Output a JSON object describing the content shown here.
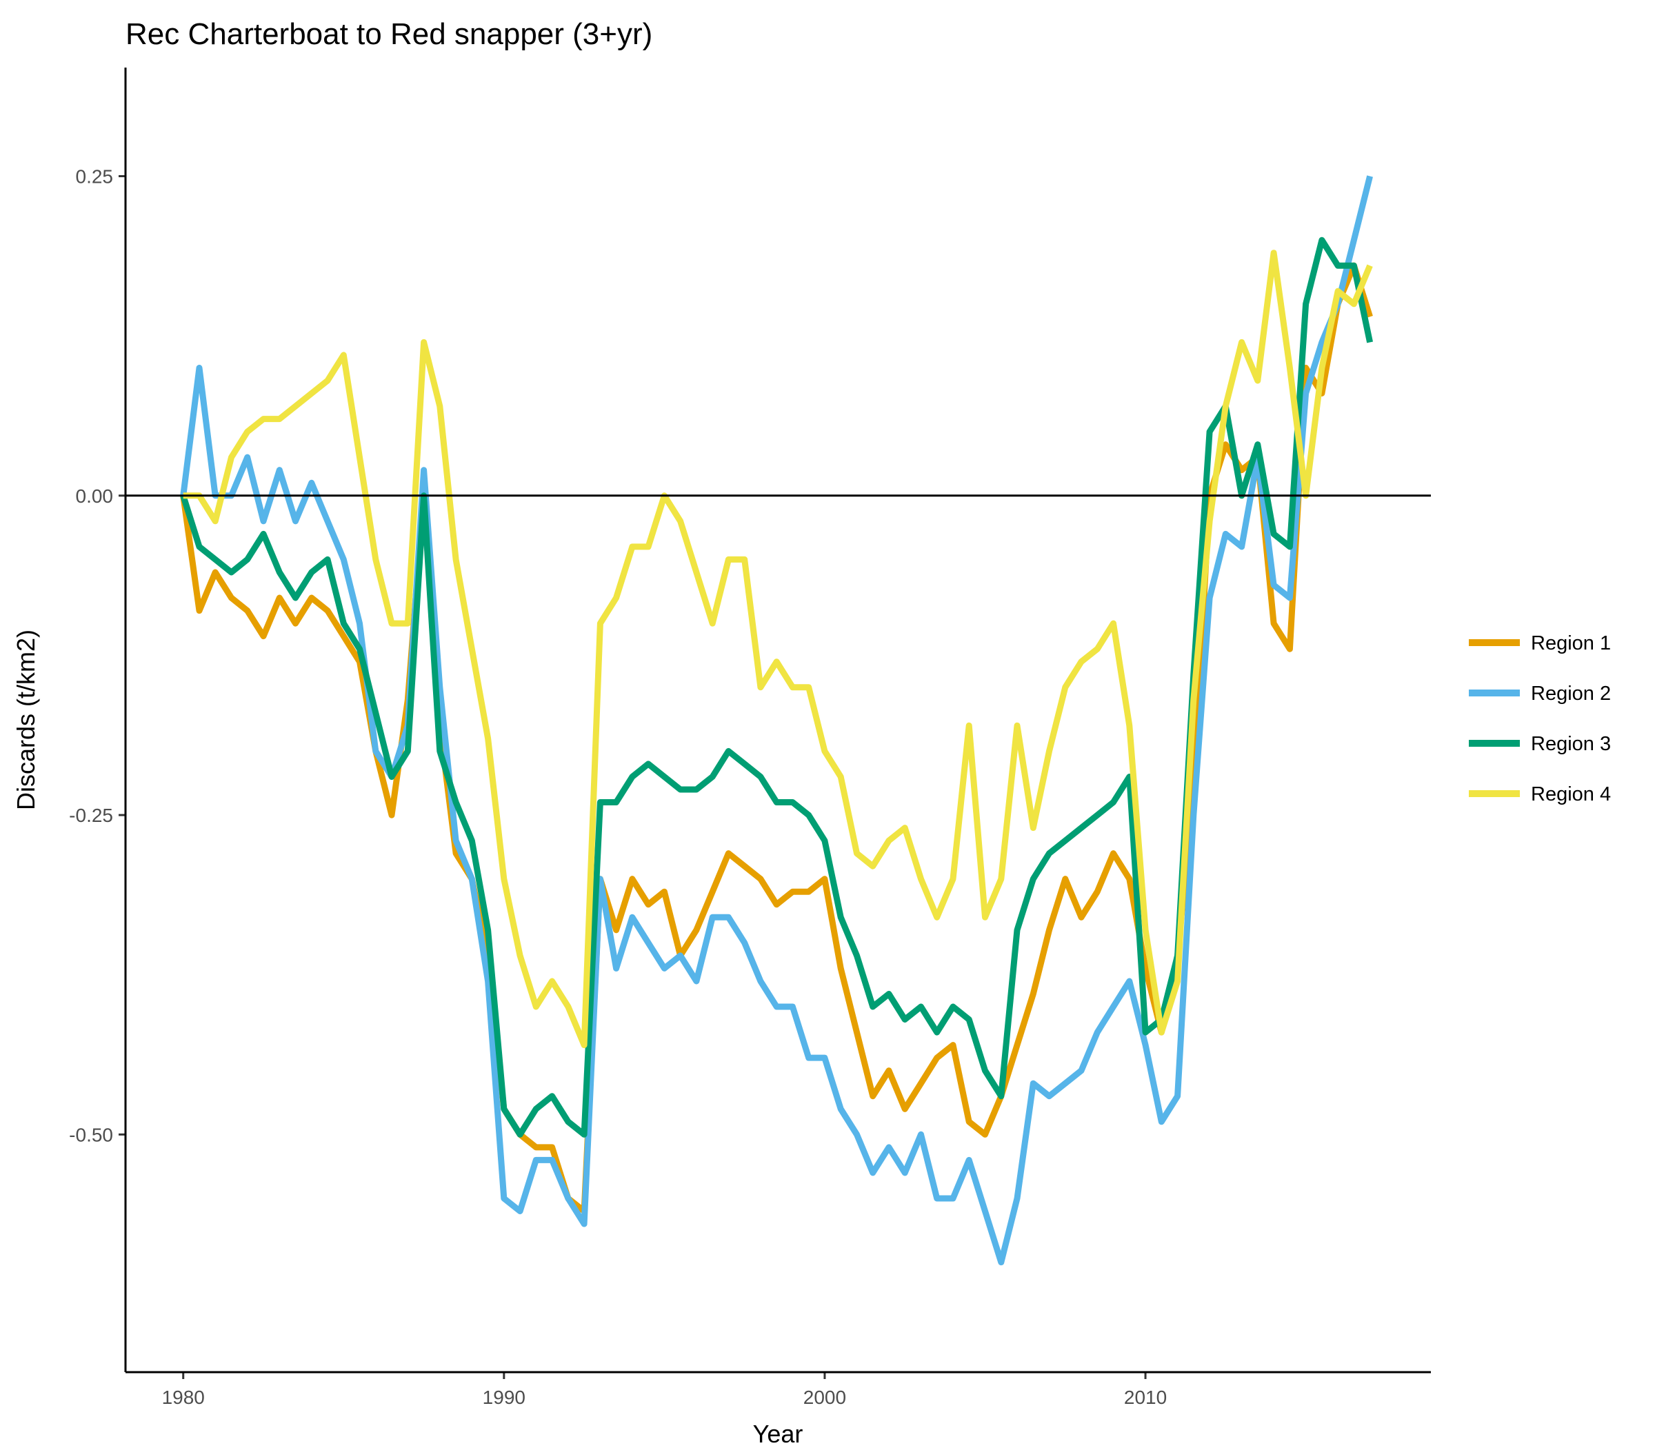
{
  "chart_data": {
    "type": "line",
    "title": "Rec Charterboat to Red snapper (3+yr)",
    "xlabel": "Year",
    "ylabel": "Discards (t/km2)",
    "xlim": [
      1978.2,
      2018.9
    ],
    "ylim": [
      -0.686,
      0.335
    ],
    "x_ticks": [
      1980,
      1990,
      2000,
      2010
    ],
    "x_tick_labels": [
      "1980",
      "1990",
      "2000",
      "2010"
    ],
    "y_ticks": [
      -0.5,
      -0.25,
      0,
      0.25
    ],
    "y_tick_labels": [
      "-0.50",
      "-0.25",
      "0.00",
      "0.25"
    ],
    "reference_line_y": 0,
    "grid": false,
    "legend_position": "right",
    "series": [
      {
        "name": "Region 1",
        "color": "#E69F00",
        "x": [
          1980,
          1980.5,
          1981,
          1981.5,
          1982,
          1982.5,
          1983,
          1983.5,
          1984,
          1984.5,
          1985,
          1985.5,
          1986,
          1986.5,
          1987,
          1987.5,
          1988,
          1988.5,
          1989,
          1989.5,
          1990,
          1990.5,
          1991,
          1991.5,
          1992,
          1992.5,
          1993,
          1993.5,
          1994,
          1994.5,
          1995,
          1995.5,
          1996,
          1996.5,
          1997,
          1997.5,
          1998,
          1998.5,
          1999,
          1999.5,
          2000,
          2000.5,
          2001,
          2001.5,
          2002,
          2002.5,
          2003,
          2003.5,
          2004,
          2004.5,
          2005,
          2005.5,
          2006,
          2006.5,
          2007,
          2007.5,
          2008,
          2008.5,
          2009,
          2009.5,
          2010,
          2010.5,
          2011,
          2011.5,
          2012,
          2012.5,
          2013,
          2013.5,
          2014,
          2014.5,
          2015,
          2015.5,
          2016,
          2016.5,
          2017
        ],
        "values": [
          0.0,
          -0.09,
          -0.06,
          -0.08,
          -0.09,
          -0.11,
          -0.08,
          -0.1,
          -0.08,
          -0.09,
          -0.11,
          -0.13,
          -0.2,
          -0.25,
          -0.16,
          0.0,
          -0.18,
          -0.28,
          -0.3,
          -0.36,
          -0.48,
          -0.5,
          -0.51,
          -0.51,
          -0.55,
          -0.56,
          -0.3,
          -0.34,
          -0.3,
          -0.32,
          -0.31,
          -0.36,
          -0.34,
          -0.31,
          -0.28,
          -0.29,
          -0.3,
          -0.32,
          -0.31,
          -0.31,
          -0.3,
          -0.37,
          -0.42,
          -0.47,
          -0.45,
          -0.48,
          -0.46,
          -0.44,
          -0.43,
          -0.49,
          -0.5,
          -0.47,
          -0.43,
          -0.39,
          -0.34,
          -0.3,
          -0.33,
          -0.31,
          -0.28,
          -0.3,
          -0.37,
          -0.42,
          -0.36,
          -0.23,
          0.0,
          0.04,
          0.02,
          0.03,
          -0.1,
          -0.12,
          0.1,
          0.08,
          0.15,
          0.18,
          0.14
        ]
      },
      {
        "name": "Region 2",
        "color": "#56B4E9",
        "x": [
          1980,
          1980.5,
          1981,
          1981.5,
          1982,
          1982.5,
          1983,
          1983.5,
          1984,
          1984.5,
          1985,
          1985.5,
          1986,
          1986.5,
          1987,
          1987.5,
          1988,
          1988.5,
          1989,
          1989.5,
          1990,
          1990.5,
          1991,
          1991.5,
          1992,
          1992.5,
          1993,
          1993.5,
          1994,
          1994.5,
          1995,
          1995.5,
          1996,
          1996.5,
          1997,
          1997.5,
          1998,
          1998.5,
          1999,
          1999.5,
          2000,
          2000.5,
          2001,
          2001.5,
          2002,
          2002.5,
          2003,
          2003.5,
          2004,
          2004.5,
          2005,
          2005.5,
          2006,
          2006.5,
          2007,
          2007.5,
          2008,
          2008.5,
          2009,
          2009.5,
          2010,
          2010.5,
          2011,
          2011.5,
          2012,
          2012.5,
          2013,
          2013.5,
          2014,
          2014.5,
          2015,
          2015.5,
          2016,
          2016.5,
          2017
        ],
        "values": [
          0.0,
          0.1,
          0.0,
          0.0,
          0.03,
          -0.02,
          0.02,
          -0.02,
          0.01,
          -0.02,
          -0.05,
          -0.1,
          -0.2,
          -0.22,
          -0.18,
          0.02,
          -0.15,
          -0.27,
          -0.3,
          -0.38,
          -0.55,
          -0.56,
          -0.52,
          -0.52,
          -0.55,
          -0.57,
          -0.3,
          -0.37,
          -0.33,
          -0.35,
          -0.37,
          -0.36,
          -0.38,
          -0.33,
          -0.33,
          -0.35,
          -0.38,
          -0.4,
          -0.4,
          -0.44,
          -0.44,
          -0.48,
          -0.5,
          -0.53,
          -0.51,
          -0.53,
          -0.5,
          -0.55,
          -0.55,
          -0.52,
          -0.56,
          -0.6,
          -0.55,
          -0.46,
          -0.47,
          -0.46,
          -0.45,
          -0.42,
          -0.4,
          -0.38,
          -0.43,
          -0.49,
          -0.47,
          -0.25,
          -0.08,
          -0.03,
          -0.04,
          0.03,
          -0.07,
          -0.08,
          0.08,
          0.12,
          0.15,
          0.2,
          0.25
        ]
      },
      {
        "name": "Region 3",
        "color": "#009E73",
        "x": [
          1980,
          1980.5,
          1981,
          1981.5,
          1982,
          1982.5,
          1983,
          1983.5,
          1984,
          1984.5,
          1985,
          1985.5,
          1986,
          1986.5,
          1987,
          1987.5,
          1988,
          1988.5,
          1989,
          1989.5,
          1990,
          1990.5,
          1991,
          1991.5,
          1992,
          1992.5,
          1993,
          1993.5,
          1994,
          1994.5,
          1995,
          1995.5,
          1996,
          1996.5,
          1997,
          1997.5,
          1998,
          1998.5,
          1999,
          1999.5,
          2000,
          2000.5,
          2001,
          2001.5,
          2002,
          2002.5,
          2003,
          2003.5,
          2004,
          2004.5,
          2005,
          2005.5,
          2006,
          2006.5,
          2007,
          2007.5,
          2008,
          2008.5,
          2009,
          2009.5,
          2010,
          2010.5,
          2011,
          2011.5,
          2012,
          2012.5,
          2013,
          2013.5,
          2014,
          2014.5,
          2015,
          2015.5,
          2016,
          2016.5,
          2017
        ],
        "values": [
          0.0,
          -0.04,
          -0.05,
          -0.06,
          -0.05,
          -0.03,
          -0.06,
          -0.08,
          -0.06,
          -0.05,
          -0.1,
          -0.12,
          -0.17,
          -0.22,
          -0.2,
          0.0,
          -0.2,
          -0.24,
          -0.27,
          -0.34,
          -0.48,
          -0.5,
          -0.48,
          -0.47,
          -0.49,
          -0.5,
          -0.24,
          -0.24,
          -0.22,
          -0.21,
          -0.22,
          -0.23,
          -0.23,
          -0.22,
          -0.2,
          -0.21,
          -0.22,
          -0.24,
          -0.24,
          -0.25,
          -0.27,
          -0.33,
          -0.36,
          -0.4,
          -0.39,
          -0.41,
          -0.4,
          -0.42,
          -0.4,
          -0.41,
          -0.45,
          -0.47,
          -0.34,
          -0.3,
          -0.28,
          -0.27,
          -0.26,
          -0.25,
          -0.24,
          -0.22,
          -0.42,
          -0.41,
          -0.36,
          -0.14,
          0.05,
          0.07,
          0.0,
          0.04,
          -0.03,
          -0.04,
          0.15,
          0.2,
          0.18,
          0.18,
          0.12
        ]
      },
      {
        "name": "Region 4",
        "color": "#F0E442",
        "x": [
          1980,
          1980.5,
          1981,
          1981.5,
          1982,
          1982.5,
          1983,
          1983.5,
          1984,
          1984.5,
          1985,
          1985.5,
          1986,
          1986.5,
          1987,
          1987.5,
          1988,
          1988.5,
          1989,
          1989.5,
          1990,
          1990.5,
          1991,
          1991.5,
          1992,
          1992.5,
          1993,
          1993.5,
          1994,
          1994.5,
          1995,
          1995.5,
          1996,
          1996.5,
          1997,
          1997.5,
          1998,
          1998.5,
          1999,
          1999.5,
          2000,
          2000.5,
          2001,
          2001.5,
          2002,
          2002.5,
          2003,
          2003.5,
          2004,
          2004.5,
          2005,
          2005.5,
          2006,
          2006.5,
          2007,
          2007.5,
          2008,
          2008.5,
          2009,
          2009.5,
          2010,
          2010.5,
          2011,
          2011.5,
          2012,
          2012.5,
          2013,
          2013.5,
          2014,
          2014.5,
          2015,
          2015.5,
          2016,
          2016.5,
          2017
        ],
        "values": [
          0.0,
          0.0,
          -0.02,
          0.03,
          0.05,
          0.06,
          0.06,
          0.07,
          0.08,
          0.09,
          0.11,
          0.03,
          -0.05,
          -0.1,
          -0.1,
          0.12,
          0.07,
          -0.05,
          -0.12,
          -0.19,
          -0.3,
          -0.36,
          -0.4,
          -0.38,
          -0.4,
          -0.43,
          -0.1,
          -0.08,
          -0.04,
          -0.04,
          0.0,
          -0.02,
          -0.06,
          -0.1,
          -0.05,
          -0.05,
          -0.15,
          -0.13,
          -0.15,
          -0.15,
          -0.2,
          -0.22,
          -0.28,
          -0.29,
          -0.27,
          -0.26,
          -0.3,
          -0.33,
          -0.3,
          -0.18,
          -0.33,
          -0.3,
          -0.18,
          -0.26,
          -0.2,
          -0.15,
          -0.13,
          -0.12,
          -0.1,
          -0.18,
          -0.34,
          -0.42,
          -0.38,
          -0.16,
          -0.02,
          0.07,
          0.12,
          0.09,
          0.19,
          0.1,
          0.0,
          0.1,
          0.16,
          0.15,
          0.18
        ]
      }
    ]
  }
}
